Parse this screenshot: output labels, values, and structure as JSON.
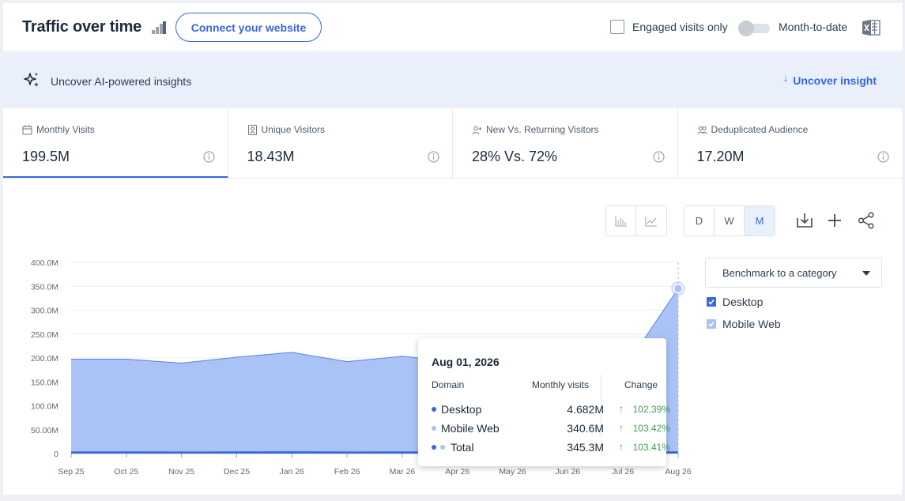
{
  "header": {
    "title": "Traffic over time",
    "connect_button": "Connect your website",
    "engaged_label": "Engaged visits only",
    "month_to_date_label": "Month-to-date",
    "export_icon": "excel-icon"
  },
  "insight_bar": {
    "text": "Uncover AI-powered insights",
    "action": "Uncover insight",
    "icon": "sparkle-icon"
  },
  "metrics": [
    {
      "label": "Monthly Visits",
      "value": "199.5M",
      "icon": "calendar-icon"
    },
    {
      "label": "Unique Visitors",
      "value": "18.43M",
      "icon": "person-card-icon"
    },
    {
      "label": "New Vs. Returning Visitors",
      "value": "28% Vs. 72%",
      "icon": "user-plus-icon"
    },
    {
      "label": "Deduplicated Audience",
      "value": "17.20M",
      "icon": "users-icon"
    }
  ],
  "toolbar": {
    "granularity": [
      "D",
      "W",
      "M"
    ],
    "active_granularity": "M"
  },
  "benchmark": {
    "label": "Benchmark to a category"
  },
  "legend": [
    {
      "label": "Desktop",
      "color": "#3a66e0",
      "checked": true
    },
    {
      "label": "Mobile Web",
      "color": "#a9c3f6",
      "checked": true
    }
  ],
  "tooltip": {
    "date": "Aug 01, 2026",
    "col_domain": "Domain",
    "col_visits": "Monthly visits",
    "col_change": "Change",
    "rows": [
      {
        "name": "Desktop",
        "visits": "4.682M",
        "change": "102.39%"
      },
      {
        "name": "Mobile Web",
        "visits": "340.6M",
        "change": "103.42%"
      },
      {
        "name": "Total",
        "visits": "345.3M",
        "change": "103.41%"
      }
    ]
  },
  "chart_data": {
    "type": "area",
    "x": [
      "Sep 25",
      "Oct 25",
      "Nov 25",
      "Dec 25",
      "Jan 26",
      "Feb 26",
      "Mar 26",
      "Apr 26",
      "May 26",
      "Jun 26",
      "Jul 26",
      "Aug 26"
    ],
    "y_ticks": [
      "0",
      "50.00M",
      "100.0M",
      "150.0M",
      "200.0M",
      "250.0M",
      "300.0M",
      "350.0M",
      "400.0M"
    ],
    "ylim": [
      0,
      400
    ],
    "y_unit": "M",
    "series": [
      {
        "name": "Mobile Web",
        "color": "#a9c3f6",
        "values": [
          193,
          193,
          185,
          197,
          207,
          188,
          199,
          188,
          182,
          175,
          170,
          340.6
        ]
      },
      {
        "name": "Desktop",
        "color": "#3a66e0",
        "values": [
          4.5,
          4.5,
          4.3,
          4.6,
          4.8,
          4.4,
          4.6,
          4.4,
          4.2,
          4.1,
          3.9,
          4.682
        ]
      }
    ],
    "grid": true,
    "legend_position": "right"
  }
}
